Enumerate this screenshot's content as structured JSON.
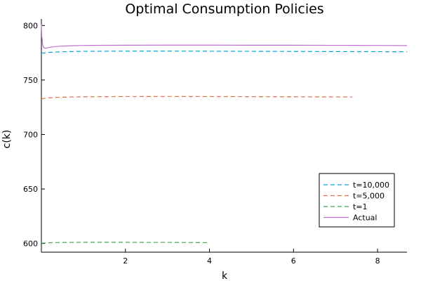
{
  "chart_data": {
    "type": "line",
    "title": "Optimal Consumption Policies",
    "xlabel": "k",
    "ylabel": "c(k)",
    "xlim": [
      0.0,
      8.7
    ],
    "ylim": [
      592,
      806
    ],
    "x_ticks": [
      2,
      4,
      6,
      8
    ],
    "y_ticks": [
      600,
      650,
      700,
      750,
      800
    ],
    "grid": false,
    "legend_position": "bottom-right",
    "series": [
      {
        "name": "t=10,000",
        "color": "#00a2d8",
        "dash": "dashed",
        "x": [
          0.0,
          0.1,
          0.2,
          0.4,
          0.7,
          1.0,
          2.0,
          3.0,
          4.0,
          5.0,
          6.0,
          7.0,
          8.0,
          8.7
        ],
        "y": [
          774.6,
          775.0,
          775.4,
          775.8,
          776.1,
          776.3,
          776.5,
          776.5,
          776.4,
          776.3,
          776.2,
          776.1,
          776.0,
          775.9
        ]
      },
      {
        "name": "t=5,000",
        "color": "#e26f46",
        "dash": "dashed",
        "x": [
          0.0,
          0.1,
          0.2,
          0.4,
          0.7,
          1.0,
          2.0,
          3.0,
          4.0,
          5.0,
          6.0,
          7.0,
          7.4
        ],
        "y": [
          732.7,
          733.3,
          733.7,
          734.1,
          734.4,
          734.6,
          734.8,
          734.9,
          734.8,
          734.7,
          734.6,
          734.5,
          734.4
        ]
      },
      {
        "name": "t=1",
        "color": "#3da44d",
        "dash": "dashed",
        "x": [
          0.0,
          0.1,
          0.2,
          0.4,
          0.7,
          1.0,
          1.5,
          2.0,
          2.5,
          3.0,
          3.5,
          4.0
        ],
        "y": [
          600.2,
          600.5,
          600.7,
          600.9,
          601.0,
          601.1,
          601.1,
          601.1,
          601.0,
          601.0,
          600.9,
          600.8
        ]
      },
      {
        "name": "Actual",
        "color": "#c271d2",
        "dash": "solid",
        "x": [
          0.0,
          0.01,
          0.03,
          0.06,
          0.1,
          0.2,
          0.4,
          0.7,
          1.0,
          2.0,
          3.0,
          4.0,
          5.0,
          6.0,
          7.0,
          8.0,
          8.7
        ],
        "y": [
          801.0,
          790.0,
          782.0,
          779.5,
          779.2,
          780.0,
          780.9,
          781.4,
          781.7,
          781.9,
          782.0,
          782.0,
          781.9,
          781.9,
          781.8,
          781.7,
          781.6
        ]
      }
    ]
  }
}
